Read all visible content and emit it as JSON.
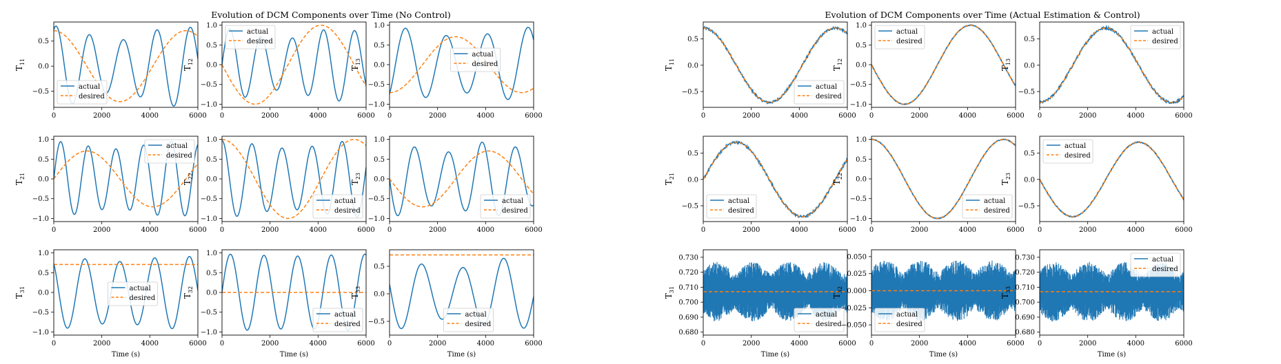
{
  "colors": {
    "actual": "#1f77b4",
    "desired": "#ff7f0e",
    "frame": "#000000"
  },
  "figures": [
    {
      "title": "Evolution of DCM Components over Time (No Control)"
    },
    {
      "title": "Evolution of DCM Components over Time (Actual Estimation & Control)"
    }
  ],
  "chart_data": [
    {
      "id": "nc-11",
      "figure": 0,
      "row": 0,
      "col": 0,
      "type": "line",
      "ylabel": "T11",
      "ylabel_base": "T",
      "ylabel_sub": "11",
      "xlim": [
        0,
        6000
      ],
      "ylim": [
        -0.82,
        0.88
      ],
      "xticks": [
        0,
        2000,
        4000,
        6000
      ],
      "yticks": [
        -0.5,
        0.0,
        0.5
      ],
      "xlabel": "",
      "legend": [
        "actual",
        "desired"
      ],
      "legend_loc": "lower left",
      "series": [
        {
          "name": "actual",
          "style": "solid",
          "kind": "sin",
          "A": 0.8,
          "P": 1400,
          "phi": 1.15,
          "P2": 5200,
          "m": 0.35,
          "c": 0.0
        },
        {
          "name": "desired",
          "style": "dashed",
          "kind": "cos",
          "A": 0.707,
          "P": 5500,
          "phi": 0.0,
          "c": 0.0
        }
      ]
    },
    {
      "id": "nc-12",
      "figure": 0,
      "row": 0,
      "col": 1,
      "type": "line",
      "ylabel": "T12",
      "ylabel_base": "T",
      "ylabel_sub": "12",
      "xlim": [
        0,
        6000
      ],
      "ylim": [
        -1.08,
        1.08
      ],
      "xticks": [
        0,
        2000,
        4000,
        6000
      ],
      "yticks": [
        -1.0,
        -0.5,
        0.0,
        0.5,
        1.0
      ],
      "xlabel": "",
      "legend": [
        "actual",
        "desired"
      ],
      "legend_loc": "upper left",
      "series": [
        {
          "name": "actual",
          "style": "solid",
          "kind": "sin",
          "A": 0.92,
          "P": 1300,
          "phi": 0.0,
          "P2": 4800,
          "m": 0.3,
          "c": 0.0
        },
        {
          "name": "desired",
          "style": "dashed",
          "kind": "sin",
          "A": -1.0,
          "P": 5500,
          "phi": 0.0,
          "c": 0.0
        }
      ]
    },
    {
      "id": "nc-13",
      "figure": 0,
      "row": 0,
      "col": 2,
      "type": "line",
      "ylabel": "T13",
      "ylabel_base": "T",
      "ylabel_sub": "13",
      "xlim": [
        0,
        6000
      ],
      "ylim": [
        -1.08,
        1.08
      ],
      "xticks": [
        0,
        2000,
        4000,
        6000
      ],
      "yticks": [
        -1.0,
        -0.5,
        0.0,
        0.5,
        1.0
      ],
      "xlabel": "",
      "legend": [
        "actual",
        "desired"
      ],
      "legend_loc": "upper center",
      "series": [
        {
          "name": "actual",
          "style": "solid",
          "kind": "sin",
          "A": 0.95,
          "P": 1700,
          "phi": -0.9,
          "P2": 6000,
          "m": 0.25,
          "c": 0.0
        },
        {
          "name": "desired",
          "style": "dashed",
          "kind": "cos",
          "A": -0.707,
          "P": 5500,
          "phi": 0.0,
          "c": 0.0
        }
      ]
    },
    {
      "id": "nc-21",
      "figure": 0,
      "row": 1,
      "col": 0,
      "type": "line",
      "ylabel": "T21",
      "ylabel_base": "T",
      "ylabel_sub": "21",
      "xlim": [
        0,
        6000
      ],
      "ylim": [
        -1.08,
        1.08
      ],
      "xticks": [
        0,
        2000,
        4000,
        6000
      ],
      "yticks": [
        -1.0,
        -0.5,
        0.0,
        0.5,
        1.0
      ],
      "xlabel": "",
      "legend": [
        "actual",
        "desired"
      ],
      "legend_loc": "upper right",
      "series": [
        {
          "name": "actual",
          "style": "solid",
          "kind": "sin",
          "A": 0.95,
          "P": 1150,
          "phi": 0.0,
          "P2": 5000,
          "m": 0.2,
          "c": 0.0
        },
        {
          "name": "desired",
          "style": "dashed",
          "kind": "sin",
          "A": 0.707,
          "P": 5500,
          "phi": 0.0,
          "c": 0.0
        }
      ]
    },
    {
      "id": "nc-22",
      "figure": 0,
      "row": 1,
      "col": 1,
      "type": "line",
      "ylabel": "T22",
      "ylabel_base": "T",
      "ylabel_sub": "22",
      "xlim": [
        0,
        6000
      ],
      "ylim": [
        -1.08,
        1.08
      ],
      "xticks": [
        0,
        2000,
        4000,
        6000
      ],
      "yticks": [
        -1.0,
        -0.5,
        0.0,
        0.5,
        1.0
      ],
      "xlabel": "",
      "legend": [
        "actual",
        "desired"
      ],
      "legend_loc": "lower right",
      "series": [
        {
          "name": "actual",
          "style": "solid",
          "kind": "cos",
          "A": 0.97,
          "P": 1250,
          "phi": 0.0,
          "P2": 5600,
          "m": 0.2,
          "c": 0.0
        },
        {
          "name": "desired",
          "style": "dashed",
          "kind": "cos",
          "A": 1.0,
          "P": 5500,
          "phi": 0.0,
          "c": 0.0
        }
      ]
    },
    {
      "id": "nc-23",
      "figure": 0,
      "row": 1,
      "col": 2,
      "type": "line",
      "ylabel": "T23",
      "ylabel_base": "T",
      "ylabel_sub": "23",
      "xlim": [
        0,
        6000
      ],
      "ylim": [
        -1.08,
        1.08
      ],
      "xticks": [
        0,
        2000,
        4000,
        6000
      ],
      "yticks": [
        -1.0,
        -0.5,
        0.0,
        0.5,
        1.0
      ],
      "xlabel": "",
      "legend": [
        "actual",
        "desired"
      ],
      "legend_loc": "lower right",
      "series": [
        {
          "name": "actual",
          "style": "solid",
          "kind": "sin",
          "A": -0.95,
          "P": 1400,
          "phi": 0.0,
          "P2": 4200,
          "m": 0.3,
          "c": 0.0
        },
        {
          "name": "desired",
          "style": "dashed",
          "kind": "sin",
          "A": -0.707,
          "P": 5500,
          "phi": 0.0,
          "c": 0.0
        }
      ]
    },
    {
      "id": "nc-31",
      "figure": 0,
      "row": 2,
      "col": 0,
      "type": "line",
      "ylabel": "T31",
      "ylabel_base": "T",
      "ylabel_sub": "31",
      "xlim": [
        0,
        6000
      ],
      "ylim": [
        -1.08,
        1.08
      ],
      "xticks": [
        0,
        2000,
        4000,
        6000
      ],
      "yticks": [
        -1.0,
        -0.5,
        0.0,
        0.5,
        1.0
      ],
      "xlabel": "Time (s)",
      "legend": [
        "actual",
        "desired"
      ],
      "legend_loc": "center",
      "series": [
        {
          "name": "actual",
          "style": "solid",
          "kind": "cos",
          "A": 0.92,
          "P": 1450,
          "phi": 0.65,
          "P2": 5200,
          "m": 0.15,
          "c": 0.0
        },
        {
          "name": "desired",
          "style": "dashed",
          "kind": "const",
          "c": 0.707
        }
      ]
    },
    {
      "id": "nc-32",
      "figure": 0,
      "row": 2,
      "col": 1,
      "type": "line",
      "ylabel": "T32",
      "ylabel_base": "T",
      "ylabel_sub": "32",
      "xlim": [
        0,
        6000
      ],
      "ylim": [
        -1.08,
        1.08
      ],
      "xticks": [
        0,
        2000,
        4000,
        6000
      ],
      "yticks": [
        -1.0,
        -0.5,
        0.0,
        0.5,
        1.0
      ],
      "xlabel": "Time (s)",
      "legend": [
        "actual",
        "desired"
      ],
      "legend_loc": "lower right",
      "series": [
        {
          "name": "actual",
          "style": "solid",
          "kind": "sin",
          "A": 0.97,
          "P": 1400,
          "phi": 0.0,
          "P2": 6000,
          "m": 0.05,
          "c": 0.0
        },
        {
          "name": "desired",
          "style": "dashed",
          "kind": "const",
          "c": 0.0
        }
      ]
    },
    {
      "id": "nc-33",
      "figure": 0,
      "row": 2,
      "col": 2,
      "type": "line",
      "ylabel": "T33",
      "ylabel_base": "T",
      "ylabel_sub": "33",
      "xlim": [
        0,
        6000
      ],
      "ylim": [
        -0.75,
        0.8
      ],
      "xticks": [
        0,
        2000,
        4000,
        6000
      ],
      "yticks": [
        -0.5,
        0.0,
        0.5
      ],
      "xlabel": "Time (s)",
      "legend": [
        "actual",
        "desired"
      ],
      "legend_loc": "lower center",
      "series": [
        {
          "name": "actual",
          "style": "solid",
          "kind": "cos",
          "A": 0.65,
          "P": 1700,
          "phi": 1.3,
          "P2": 5000,
          "m": 0.3,
          "c": 0.0
        },
        {
          "name": "desired",
          "style": "dashed",
          "kind": "const",
          "c": 0.707
        }
      ]
    },
    {
      "id": "ec-11",
      "figure": 1,
      "row": 0,
      "col": 0,
      "type": "line",
      "ylabel": "T11",
      "ylabel_base": "T",
      "ylabel_sub": "11",
      "xlim": [
        0,
        6000
      ],
      "ylim": [
        -0.8,
        0.82
      ],
      "xticks": [
        0,
        2000,
        4000,
        6000
      ],
      "yticks": [
        -0.5,
        0.0,
        0.5
      ],
      "xlabel": "",
      "legend": [
        "actual",
        "desired"
      ],
      "legend_loc": "lower right",
      "series": [
        {
          "name": "actual",
          "style": "solid",
          "kind": "cos",
          "A": 0.707,
          "P": 5500,
          "phi": 0.0,
          "c": 0.0,
          "noise": 0.02
        },
        {
          "name": "desired",
          "style": "dashed",
          "kind": "cos",
          "A": 0.707,
          "P": 5500,
          "phi": 0.0,
          "c": 0.0
        }
      ]
    },
    {
      "id": "ec-12",
      "figure": 1,
      "row": 0,
      "col": 1,
      "type": "line",
      "ylabel": "T12",
      "ylabel_base": "T",
      "ylabel_sub": "12",
      "xlim": [
        0,
        6000
      ],
      "ylim": [
        -1.08,
        1.08
      ],
      "xticks": [
        0,
        2000,
        4000,
        6000
      ],
      "yticks": [
        -1.0,
        -0.5,
        0.0,
        0.5,
        1.0
      ],
      "xlabel": "",
      "legend": [
        "actual",
        "desired"
      ],
      "legend_loc": "upper left",
      "series": [
        {
          "name": "actual",
          "style": "solid",
          "kind": "sin",
          "A": -1.0,
          "P": 5500,
          "phi": 0.0,
          "c": 0.0,
          "noise": 0.008
        },
        {
          "name": "desired",
          "style": "dashed",
          "kind": "sin",
          "A": -1.0,
          "P": 5500,
          "phi": 0.0,
          "c": 0.0
        }
      ]
    },
    {
      "id": "ec-13",
      "figure": 1,
      "row": 0,
      "col": 2,
      "type": "line",
      "ylabel": "T13",
      "ylabel_base": "T",
      "ylabel_sub": "13",
      "xlim": [
        0,
        6000
      ],
      "ylim": [
        -0.8,
        0.82
      ],
      "xticks": [
        0,
        2000,
        4000,
        6000
      ],
      "yticks": [
        -0.5,
        0.0,
        0.5
      ],
      "xlabel": "",
      "legend": [
        "actual",
        "desired"
      ],
      "legend_loc": "upper right",
      "series": [
        {
          "name": "actual",
          "style": "solid",
          "kind": "cos",
          "A": -0.707,
          "P": 5500,
          "phi": 0.0,
          "c": 0.0,
          "noise": 0.02
        },
        {
          "name": "desired",
          "style": "dashed",
          "kind": "cos",
          "A": -0.707,
          "P": 5500,
          "phi": 0.0,
          "c": 0.0
        }
      ]
    },
    {
      "id": "ec-21",
      "figure": 1,
      "row": 1,
      "col": 0,
      "type": "line",
      "ylabel": "T21",
      "ylabel_base": "T",
      "ylabel_sub": "21",
      "xlim": [
        0,
        6000
      ],
      "ylim": [
        -0.8,
        0.82
      ],
      "xticks": [
        0,
        2000,
        4000,
        6000
      ],
      "yticks": [
        -0.5,
        0.0,
        0.5
      ],
      "xlabel": "",
      "legend": [
        "actual",
        "desired"
      ],
      "legend_loc": "lower left",
      "series": [
        {
          "name": "actual",
          "style": "solid",
          "kind": "sin",
          "A": 0.707,
          "P": 5500,
          "phi": 0.0,
          "c": 0.0,
          "noise": 0.02
        },
        {
          "name": "desired",
          "style": "dashed",
          "kind": "sin",
          "A": 0.707,
          "P": 5500,
          "phi": 0.0,
          "c": 0.0
        }
      ]
    },
    {
      "id": "ec-22",
      "figure": 1,
      "row": 1,
      "col": 1,
      "type": "line",
      "ylabel": "T22",
      "ylabel_base": "T",
      "ylabel_sub": "22",
      "xlim": [
        0,
        6000
      ],
      "ylim": [
        -1.08,
        1.08
      ],
      "xticks": [
        0,
        2000,
        4000,
        6000
      ],
      "yticks": [
        -1.0,
        -0.5,
        0.0,
        0.5,
        1.0
      ],
      "xlabel": "",
      "legend": [
        "actual",
        "desired"
      ],
      "legend_loc": "lower right",
      "series": [
        {
          "name": "actual",
          "style": "solid",
          "kind": "cos",
          "A": 1.0,
          "P": 5500,
          "phi": 0.0,
          "c": 0.0,
          "noise": 0.008
        },
        {
          "name": "desired",
          "style": "dashed",
          "kind": "cos",
          "A": 1.0,
          "P": 5500,
          "phi": 0.0,
          "c": 0.0
        }
      ]
    },
    {
      "id": "ec-23",
      "figure": 1,
      "row": 1,
      "col": 2,
      "type": "line",
      "ylabel": "T23",
      "ylabel_base": "T",
      "ylabel_sub": "23",
      "xlim": [
        0,
        6000
      ],
      "ylim": [
        -0.8,
        0.82
      ],
      "xticks": [
        0,
        2000,
        4000,
        6000
      ],
      "yticks": [
        -0.5,
        0.0,
        0.5
      ],
      "xlabel": "",
      "legend": [
        "actual",
        "desired"
      ],
      "legend_loc": "upper left",
      "series": [
        {
          "name": "actual",
          "style": "solid",
          "kind": "sin",
          "A": -0.707,
          "P": 5500,
          "phi": 0.0,
          "c": 0.0,
          "noise": 0.008
        },
        {
          "name": "desired",
          "style": "dashed",
          "kind": "sin",
          "A": -0.707,
          "P": 5500,
          "phi": 0.0,
          "c": 0.0
        }
      ]
    },
    {
      "id": "ec-31",
      "figure": 1,
      "row": 2,
      "col": 0,
      "type": "line",
      "ylabel": "T31",
      "ylabel_base": "T",
      "ylabel_sub": "31",
      "xlim": [
        0,
        6000
      ],
      "ylim": [
        0.678,
        0.735
      ],
      "xticks": [
        0,
        2000,
        4000,
        6000
      ],
      "yticks": [
        0.68,
        0.69,
        0.7,
        0.71,
        0.72,
        0.73
      ],
      "xlabel": "Time (s)",
      "legend": [
        "actual",
        "desired"
      ],
      "legend_loc": "lower right",
      "series": [
        {
          "name": "actual",
          "style": "noise",
          "kind": "noise",
          "c": 0.707,
          "amp": 0.02
        },
        {
          "name": "desired",
          "style": "dashed",
          "kind": "const",
          "c": 0.707
        }
      ]
    },
    {
      "id": "ec-32",
      "figure": 1,
      "row": 2,
      "col": 1,
      "type": "line",
      "ylabel": "T32",
      "ylabel_base": "T",
      "ylabel_sub": "32",
      "xlim": [
        0,
        6000
      ],
      "ylim": [
        -0.065,
        0.06
      ],
      "xticks": [
        0,
        2000,
        4000,
        6000
      ],
      "yticks": [
        -0.05,
        -0.025,
        0.0,
        0.025,
        0.05
      ],
      "xlabel": "Time (s)",
      "legend": [
        "actual",
        "desired"
      ],
      "legend_loc": "lower left",
      "series": [
        {
          "name": "actual",
          "style": "noise",
          "kind": "noise",
          "c": 0.0,
          "amp": 0.045
        },
        {
          "name": "desired",
          "style": "dashed",
          "kind": "const",
          "c": 0.0
        }
      ]
    },
    {
      "id": "ec-33",
      "figure": 1,
      "row": 2,
      "col": 2,
      "type": "line",
      "ylabel": "T33",
      "ylabel_base": "T",
      "ylabel_sub": "33",
      "xlim": [
        0,
        6000
      ],
      "ylim": [
        0.678,
        0.735
      ],
      "xticks": [
        0,
        2000,
        4000,
        6000
      ],
      "yticks": [
        0.68,
        0.69,
        0.7,
        0.71,
        0.72,
        0.73
      ],
      "xlabel": "Time (s)",
      "legend": [
        "actual",
        "desired"
      ],
      "legend_loc": "upper right",
      "series": [
        {
          "name": "actual",
          "style": "noise",
          "kind": "noise",
          "c": 0.707,
          "amp": 0.02
        },
        {
          "name": "desired",
          "style": "dashed",
          "kind": "const",
          "c": 0.707
        }
      ]
    }
  ]
}
